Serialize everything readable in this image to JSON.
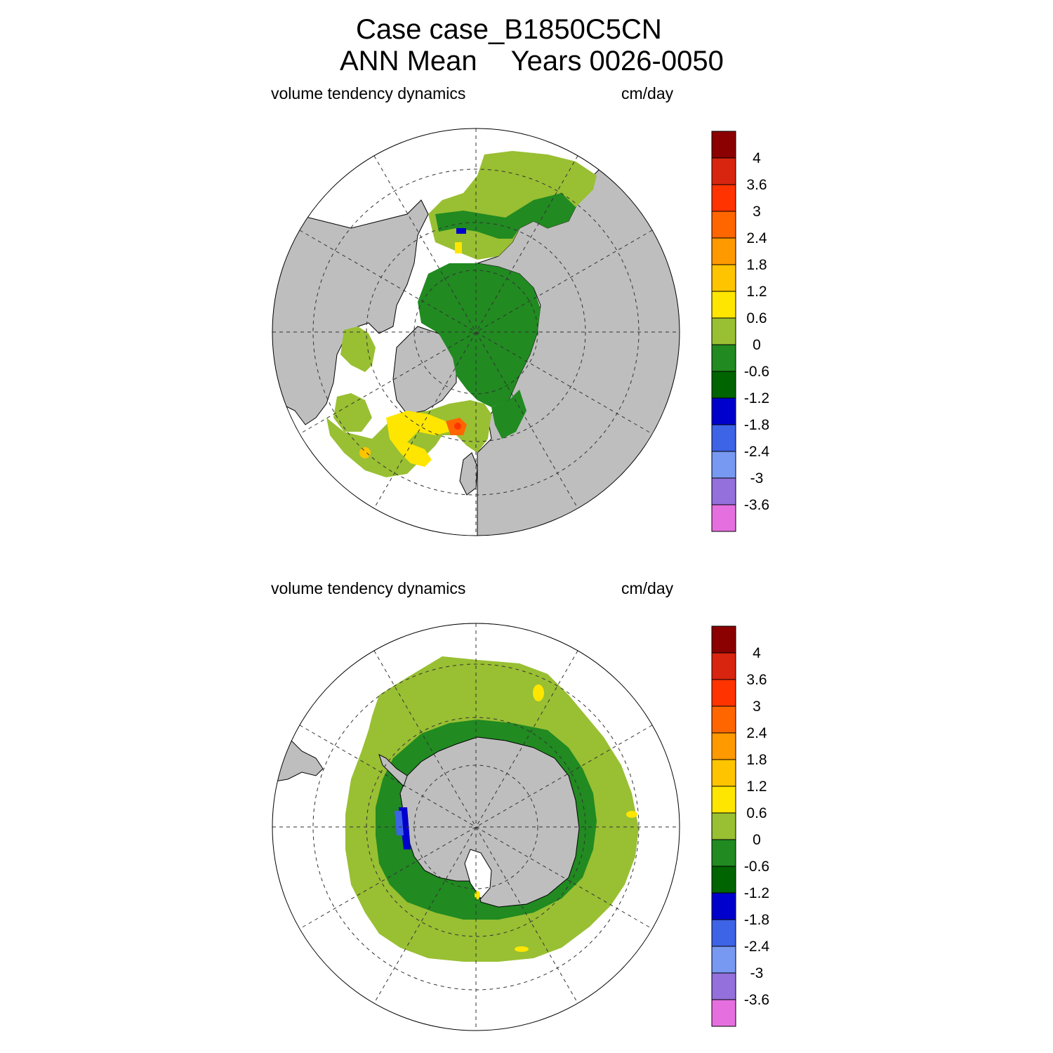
{
  "title": {
    "line1": "Case case_B1850C5CN",
    "line2_part1": "ANN Mean",
    "line2_part2": "Years 0026-0050"
  },
  "panels": [
    {
      "id": "north",
      "left_label": "volume tendency dynamics",
      "right_label": "cm/day"
    },
    {
      "id": "south",
      "left_label": "volume tendency dynamics",
      "right_label": "cm/day"
    }
  ],
  "colorbar": {
    "labels": [
      "4",
      "3.6",
      "3",
      "2.4",
      "1.8",
      "1.2",
      "0.6",
      "0",
      "-0.6",
      "-1.2",
      "-1.8",
      "-2.4",
      "-3",
      "-3.6"
    ],
    "colors": [
      "#8b0000",
      "#d8250f",
      "#ff3300",
      "#ff6600",
      "#ff9900",
      "#ffc400",
      "#ffe600",
      "#99bf33",
      "#218a21",
      "#006400",
      "#0000cc",
      "#3d63e6",
      "#7799f2",
      "#9370db",
      "#e66fe0"
    ]
  },
  "map_colors": {
    "land": "#bebebe",
    "ocean_nodata": "#ffffff",
    "grid": "#333333"
  }
}
